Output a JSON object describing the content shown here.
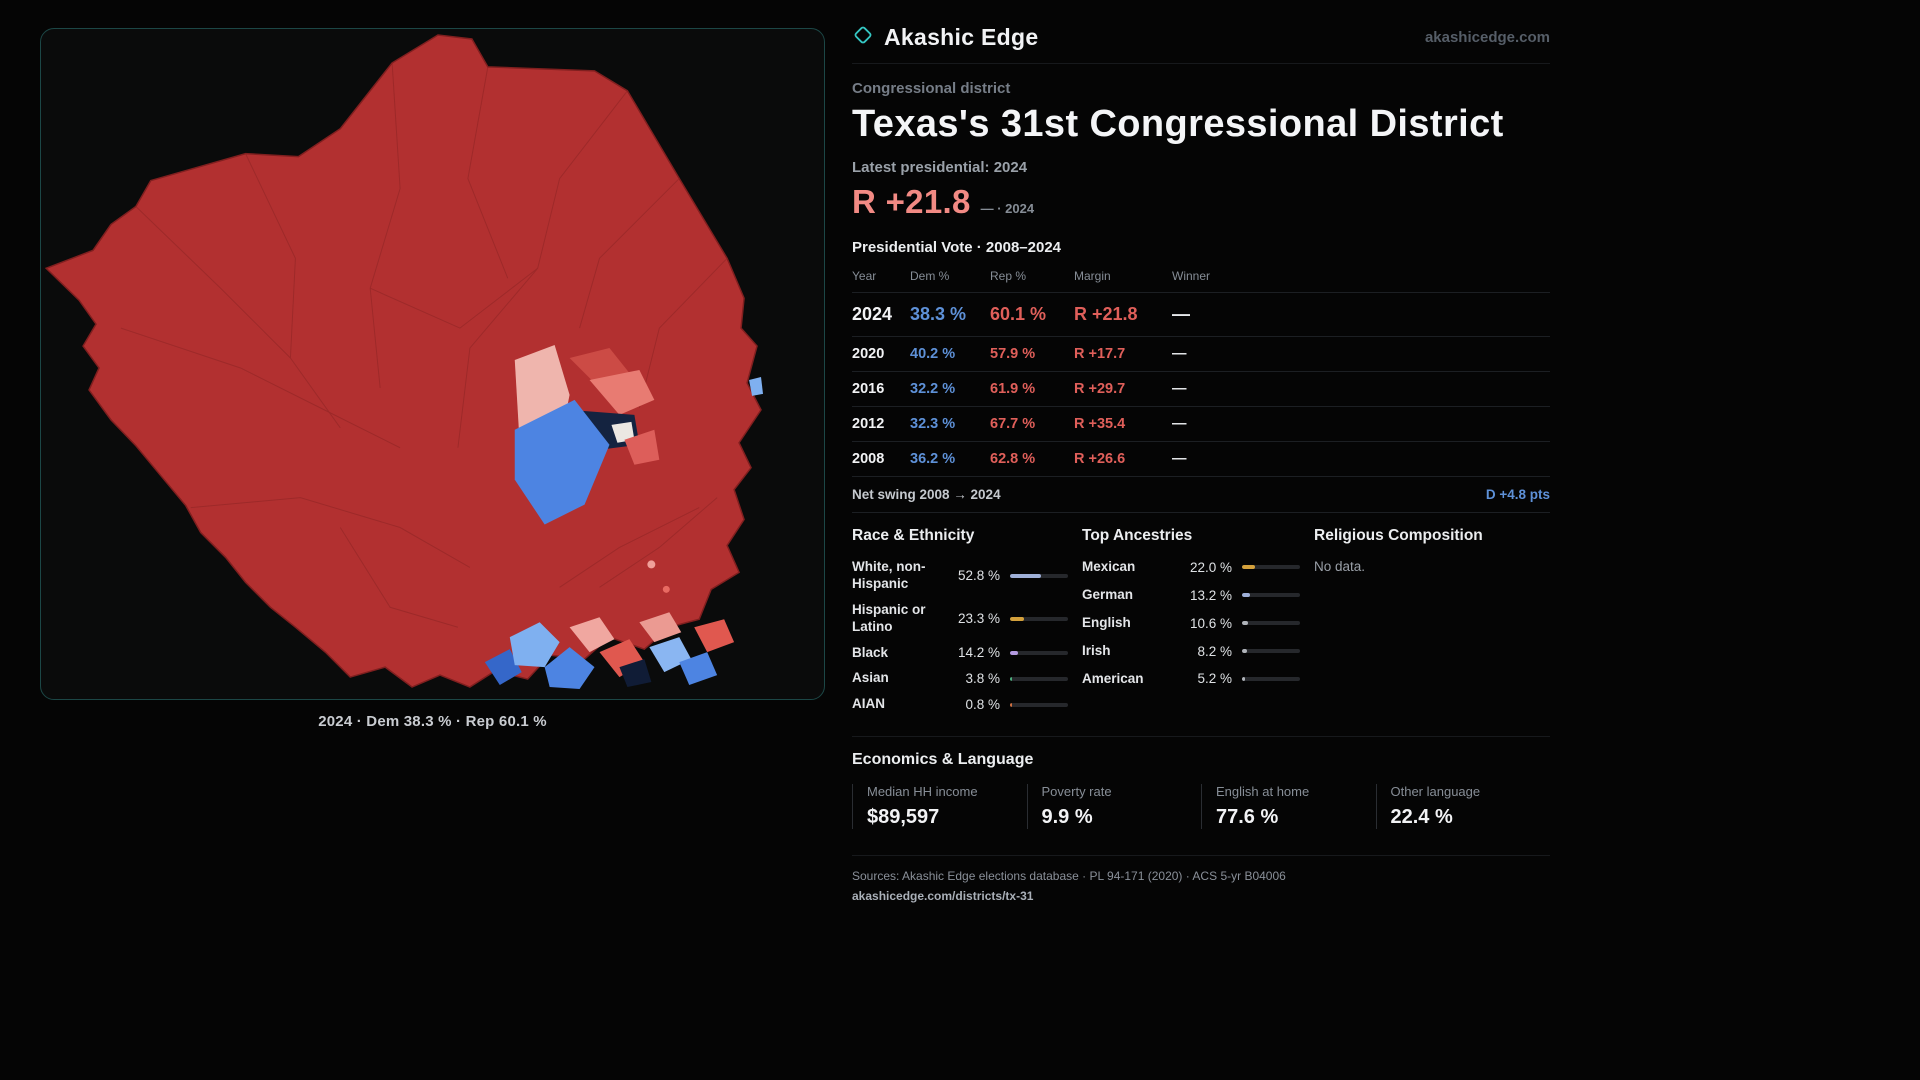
{
  "meta": {
    "site_name": "Akashic Edge",
    "site_domain": "akashicedge.com"
  },
  "map": {
    "caption": "2024 · Dem 38.3 % · Rep 60.1 %",
    "colors": {
      "rep_fill": "#b23030",
      "dem_fill": "#4d84e2",
      "panel_border": "#1c4746"
    }
  },
  "header": {
    "kicker": "Congressional district",
    "title": "Texas's 31st Congressional District",
    "latest_label": "Latest presidential: 2024",
    "margin_value": "R +21.8",
    "margin_suffix": "— · 2024"
  },
  "vote_table": {
    "title": "Presidential Vote · 2008–2024",
    "columns": [
      "Year",
      "Dem %",
      "Rep %",
      "Margin",
      "Winner"
    ],
    "rows": [
      {
        "year": "2024",
        "dem": "38.3 %",
        "rep": "60.1 %",
        "margin": "R +21.8",
        "winner": "—"
      },
      {
        "year": "2020",
        "dem": "40.2 %",
        "rep": "57.9 %",
        "margin": "R +17.7",
        "winner": "—"
      },
      {
        "year": "2016",
        "dem": "32.2 %",
        "rep": "61.9 %",
        "margin": "R +29.7",
        "winner": "—"
      },
      {
        "year": "2012",
        "dem": "32.3 %",
        "rep": "67.7 %",
        "margin": "R +35.4",
        "winner": "—"
      },
      {
        "year": "2008",
        "dem": "36.2 %",
        "rep": "62.8 %",
        "margin": "R +26.6",
        "winner": "—"
      }
    ],
    "net_swing_label": "Net swing 2008 → 2024",
    "net_swing_value": "D +4.8 pts"
  },
  "race_ethnicity": {
    "title": "Race & Ethnicity",
    "items": [
      {
        "label": "White, non-Hispanic",
        "value": "52.8 %",
        "pct": 52.8,
        "color": "#9fb0d8"
      },
      {
        "label": "Hispanic or Latino",
        "value": "23.3 %",
        "pct": 23.3,
        "color": "#d4a13c"
      },
      {
        "label": "Black",
        "value": "14.2 %",
        "pct": 14.2,
        "color": "#b49ae0"
      },
      {
        "label": "Asian",
        "value": "3.8 %",
        "pct": 3.8,
        "color": "#4caf7d"
      },
      {
        "label": "AIAN",
        "value": "0.8 %",
        "pct": 0.8,
        "color": "#d07040"
      }
    ]
  },
  "ancestries": {
    "title": "Top Ancestries",
    "items": [
      {
        "label": "Mexican",
        "value": "22.0 %",
        "pct": 22.0,
        "color": "#d4a13c"
      },
      {
        "label": "German",
        "value": "13.2 %",
        "pct": 13.2,
        "color": "#9fb0d8"
      },
      {
        "label": "English",
        "value": "10.6 %",
        "pct": 10.6,
        "color": "#b0b4ba"
      },
      {
        "label": "Irish",
        "value": "8.2 %",
        "pct": 8.2,
        "color": "#b0b4ba"
      },
      {
        "label": "American",
        "value": "5.2 %",
        "pct": 5.2,
        "color": "#b0b4ba"
      }
    ]
  },
  "religion": {
    "title": "Religious Composition",
    "empty": "No data."
  },
  "economics": {
    "title": "Economics & Language",
    "stats": [
      {
        "label": "Median HH income",
        "value": "$89,597"
      },
      {
        "label": "Poverty rate",
        "value": "9.9 %"
      },
      {
        "label": "English at home",
        "value": "77.6 %"
      },
      {
        "label": "Other language",
        "value": "22.4 %"
      }
    ]
  },
  "footer": {
    "sources": "Sources: Akashic Edge elections database · PL 94-171 (2020) · ACS 5-yr B04006",
    "permalink": "akashicedge.com/districts/tx-31"
  }
}
